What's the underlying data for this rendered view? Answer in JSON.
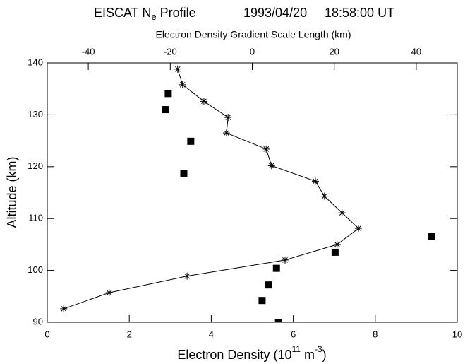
{
  "chart_data": {
    "type": "scatter",
    "title_main": "EISCAT N",
    "title_sub": "e",
    "title_rest": " Profile",
    "date": "1993/04/20",
    "time": "18:58:00 UT",
    "x2_label": "Electron Density Gradient Scale Length (km)",
    "y_label": "Altitude (km)",
    "x_label_parts": [
      "Electron Density (10",
      "11",
      " m",
      "-3",
      ")"
    ],
    "xlim": [
      0,
      10
    ],
    "xticks": [
      0,
      2,
      4,
      6,
      8,
      10
    ],
    "x2lim": [
      -50,
      50
    ],
    "x2ticks": [
      -40,
      -20,
      0,
      20,
      40
    ],
    "ylim": [
      90,
      140
    ],
    "yticks": [
      90,
      100,
      110,
      120,
      130,
      140
    ],
    "grid": false,
    "series": [
      {
        "marker": "asterisk",
        "line": true,
        "color": "#000000",
        "x": [
          0.4,
          1.51,
          3.41,
          5.8,
          7.07,
          7.59,
          7.19,
          6.76,
          6.54,
          5.47,
          5.34,
          4.37,
          4.41,
          3.82,
          3.3,
          3.18
        ],
        "values": [
          92.6,
          95.7,
          98.9,
          102.0,
          105.0,
          108.1,
          111.1,
          114.3,
          117.2,
          120.2,
          123.4,
          126.5,
          129.5,
          132.6,
          135.8,
          138.8
        ]
      },
      {
        "marker": "square",
        "line": false,
        "axis": "x2",
        "color": "#000000",
        "x": [
          -20.5,
          -21.2,
          -15.0,
          -16.7,
          43.8,
          20.2,
          5.9,
          4.0,
          2.4,
          6.4
        ],
        "values": [
          134.1,
          131.0,
          124.9,
          118.7,
          106.5,
          103.5,
          100.4,
          97.2,
          94.2,
          89.9
        ]
      }
    ]
  }
}
